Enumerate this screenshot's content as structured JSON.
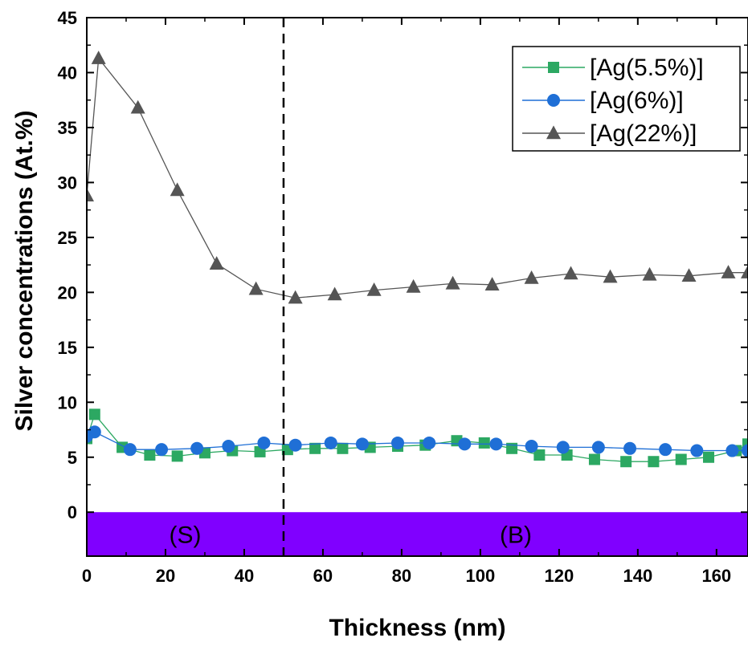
{
  "chart_data": {
    "type": "line",
    "xlabel": "Thickness (nm)",
    "ylabel": "Silver concentrations (At.%)",
    "xlim": [
      0,
      168
    ],
    "ylim": [
      -4,
      45
    ],
    "x_ticks": [
      0,
      20,
      40,
      60,
      80,
      100,
      120,
      140,
      160
    ],
    "y_ticks": [
      0,
      5,
      10,
      15,
      20,
      25,
      30,
      35,
      40,
      45
    ],
    "grid": false,
    "legend_position": "top-right",
    "series": [
      {
        "name": "[Ag(5.5%)]",
        "color": "#2ca862",
        "marker": "square",
        "points": [
          [
            0,
            6.7
          ],
          [
            2,
            8.9
          ],
          [
            9,
            5.9
          ],
          [
            16,
            5.2
          ],
          [
            23,
            5.1
          ],
          [
            30,
            5.4
          ],
          [
            37,
            5.6
          ],
          [
            44,
            5.5
          ],
          [
            51,
            5.7
          ],
          [
            58,
            5.8
          ],
          [
            65,
            5.8
          ],
          [
            72,
            5.9
          ],
          [
            79,
            6.0
          ],
          [
            86,
            6.1
          ],
          [
            94,
            6.5
          ],
          [
            101,
            6.3
          ],
          [
            108,
            5.8
          ],
          [
            115,
            5.2
          ],
          [
            122,
            5.2
          ],
          [
            129,
            4.8
          ],
          [
            137,
            4.6
          ],
          [
            144,
            4.6
          ],
          [
            151,
            4.8
          ],
          [
            158,
            5.0
          ],
          [
            165,
            5.6
          ],
          [
            168,
            6.2
          ]
        ]
      },
      {
        "name": "[Ag(6%)]",
        "color": "#1f6fd6",
        "marker": "circle",
        "points": [
          [
            0,
            6.9
          ],
          [
            2,
            7.3
          ],
          [
            11,
            5.7
          ],
          [
            19,
            5.7
          ],
          [
            28,
            5.8
          ],
          [
            36,
            6.0
          ],
          [
            45,
            6.3
          ],
          [
            53,
            6.1
          ],
          [
            62,
            6.3
          ],
          [
            70,
            6.2
          ],
          [
            79,
            6.3
          ],
          [
            87,
            6.3
          ],
          [
            96,
            6.2
          ],
          [
            104,
            6.2
          ],
          [
            113,
            6.0
          ],
          [
            121,
            5.9
          ],
          [
            130,
            5.9
          ],
          [
            138,
            5.8
          ],
          [
            147,
            5.7
          ],
          [
            155,
            5.6
          ],
          [
            164,
            5.6
          ],
          [
            168,
            5.6
          ]
        ]
      },
      {
        "name": "[Ag(22%)]",
        "color": "#555555",
        "marker": "triangle",
        "points": [
          [
            0,
            28.8
          ],
          [
            3,
            41.3
          ],
          [
            13,
            36.8
          ],
          [
            23,
            29.3
          ],
          [
            33,
            22.6
          ],
          [
            43,
            20.3
          ],
          [
            53,
            19.5
          ],
          [
            63,
            19.8
          ],
          [
            73,
            20.2
          ],
          [
            83,
            20.5
          ],
          [
            93,
            20.8
          ],
          [
            103,
            20.7
          ],
          [
            113,
            21.3
          ],
          [
            123,
            21.7
          ],
          [
            133,
            21.4
          ],
          [
            143,
            21.6
          ],
          [
            153,
            21.5
          ],
          [
            163,
            21.8
          ],
          [
            168,
            21.8
          ]
        ]
      }
    ],
    "annotations": {
      "divider_x": 50,
      "band_range": [
        -4,
        0
      ],
      "band_color": "#8000ff",
      "band_labels": [
        {
          "text": "(S)",
          "x": 25
        },
        {
          "text": "(B)",
          "x": 109
        }
      ]
    }
  }
}
